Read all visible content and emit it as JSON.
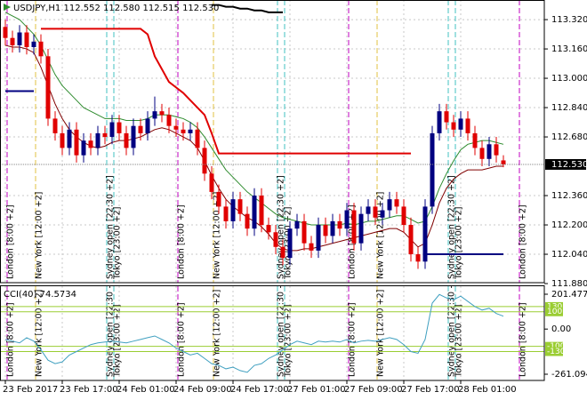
{
  "chart_data": {
    "type": "candlestick",
    "title": "USDJPY,H1  112.552 112.580 112.515 112.530",
    "categories": [
      "23 Feb 2017",
      null,
      null,
      null,
      null,
      null,
      null,
      null,
      "23 Feb 17:00",
      null,
      null,
      null,
      null,
      null,
      null,
      null,
      "24 Feb 01:00",
      null,
      null,
      null,
      null,
      null,
      null,
      null,
      "24 Feb 09:00",
      null,
      null,
      null,
      null,
      null,
      null,
      null,
      "24 Feb 17:00",
      null,
      null,
      null,
      null,
      null,
      null,
      null,
      "27 Feb 01:00",
      null,
      null,
      null,
      null,
      null,
      null,
      null,
      "27 Feb 09:00",
      null,
      null,
      null,
      null,
      null,
      null,
      null,
      "27 Feb 17:00",
      null,
      null,
      null,
      null,
      null,
      null,
      null,
      "28 Feb 01:00",
      null,
      null,
      null,
      null,
      null,
      null
    ],
    "open": [
      113.28,
      113.22,
      113.18,
      113.25,
      113.17,
      113.2,
      113.12,
      112.78,
      112.7,
      112.62,
      112.72,
      112.58,
      112.66,
      112.62,
      112.7,
      112.68,
      112.76,
      112.7,
      112.62,
      112.74,
      112.7,
      112.78,
      112.82,
      112.8,
      112.74,
      112.72,
      112.7,
      112.72,
      112.62,
      112.48,
      112.38,
      112.3,
      112.22,
      112.34,
      112.26,
      112.18,
      112.36,
      112.2,
      112.16,
      112.08,
      112.02,
      112.18,
      112.22,
      112.1,
      112.06,
      112.2,
      112.14,
      112.22,
      112.18,
      112.28,
      112.1,
      112.26,
      112.3,
      112.24,
      112.28,
      112.34,
      112.3,
      112.2,
      112.04,
      112.0,
      112.3,
      112.7,
      112.82,
      112.76,
      112.72,
      112.78,
      112.7,
      112.62,
      112.56,
      112.64,
      112.552
    ],
    "high": [
      113.32,
      113.26,
      113.29,
      113.29,
      113.24,
      113.24,
      113.16,
      112.82,
      112.74,
      112.76,
      112.76,
      112.7,
      112.7,
      112.74,
      112.74,
      112.8,
      112.8,
      112.74,
      112.78,
      112.78,
      112.82,
      112.9,
      112.86,
      112.84,
      112.78,
      112.76,
      112.76,
      112.76,
      112.66,
      112.52,
      112.42,
      112.34,
      112.38,
      112.38,
      112.3,
      112.4,
      112.4,
      112.24,
      112.2,
      112.12,
      112.22,
      112.26,
      112.26,
      112.14,
      112.24,
      112.24,
      112.26,
      112.26,
      112.32,
      112.32,
      112.3,
      112.34,
      112.34,
      112.32,
      112.38,
      112.38,
      112.34,
      112.24,
      112.08,
      112.34,
      112.74,
      112.86,
      112.86,
      112.8,
      112.82,
      112.82,
      112.74,
      112.66,
      112.68,
      112.68,
      112.58
    ],
    "low": [
      113.18,
      113.14,
      113.14,
      113.13,
      113.13,
      113.08,
      112.74,
      112.66,
      112.58,
      112.58,
      112.54,
      112.54,
      112.58,
      112.58,
      112.64,
      112.64,
      112.66,
      112.58,
      112.58,
      112.66,
      112.66,
      112.74,
      112.76,
      112.7,
      112.68,
      112.66,
      112.66,
      112.58,
      112.44,
      112.34,
      112.26,
      112.18,
      112.18,
      112.22,
      112.14,
      112.14,
      112.16,
      112.12,
      112.04,
      111.98,
      111.98,
      112.14,
      112.06,
      112.02,
      112.02,
      112.1,
      112.1,
      112.14,
      112.14,
      112.06,
      112.06,
      112.22,
      112.2,
      112.2,
      112.24,
      112.26,
      112.16,
      112.0,
      111.96,
      111.96,
      112.26,
      112.66,
      112.72,
      112.68,
      112.68,
      112.66,
      112.58,
      112.52,
      112.52,
      112.54,
      112.515
    ],
    "close": [
      113.22,
      113.18,
      113.25,
      113.17,
      113.2,
      113.12,
      112.78,
      112.7,
      112.62,
      112.72,
      112.58,
      112.66,
      112.62,
      112.7,
      112.68,
      112.76,
      112.7,
      112.62,
      112.74,
      112.7,
      112.78,
      112.82,
      112.8,
      112.74,
      112.72,
      112.7,
      112.72,
      112.62,
      112.48,
      112.38,
      112.3,
      112.22,
      112.34,
      112.26,
      112.18,
      112.36,
      112.2,
      112.16,
      112.08,
      112.02,
      112.18,
      112.22,
      112.1,
      112.06,
      112.2,
      112.14,
      112.22,
      112.18,
      112.28,
      112.1,
      112.26,
      112.3,
      112.24,
      112.28,
      112.34,
      112.3,
      112.2,
      112.04,
      112.0,
      112.3,
      112.7,
      112.82,
      112.76,
      112.72,
      112.78,
      112.7,
      112.62,
      112.56,
      112.64,
      112.58,
      112.53
    ],
    "up_color": "#000080",
    "down_color": "#e00000",
    "series": [
      {
        "color": "#2e8b2e",
        "values": [
          113.36,
          113.34,
          113.32,
          113.28,
          113.24,
          113.18,
          113.1,
          113.02,
          112.96,
          112.92,
          112.88,
          112.84,
          112.82,
          112.8,
          112.78,
          112.78,
          112.78,
          112.77,
          112.77,
          112.77,
          112.78,
          112.8,
          112.8,
          112.8,
          112.79,
          112.78,
          112.76,
          112.73,
          112.68,
          112.62,
          112.56,
          112.5,
          112.46,
          112.42,
          112.38,
          112.35,
          112.32,
          112.29,
          112.26,
          112.24,
          112.23,
          112.22,
          112.21,
          112.2,
          112.2,
          112.2,
          112.2,
          112.2,
          112.21,
          112.2,
          112.21,
          112.22,
          112.22,
          112.23,
          112.24,
          112.25,
          112.25,
          112.23,
          112.21,
          112.22,
          112.3,
          112.4,
          112.48,
          112.55,
          112.61,
          112.64,
          112.65,
          112.66,
          112.66,
          112.65,
          112.64
        ]
      },
      {
        "color": "#800000",
        "values": [
          113.18,
          113.17,
          113.17,
          113.16,
          113.14,
          113.06,
          112.96,
          112.86,
          112.78,
          112.72,
          112.68,
          112.65,
          112.63,
          112.62,
          112.63,
          112.65,
          112.66,
          112.66,
          112.67,
          112.68,
          112.7,
          112.72,
          112.73,
          112.72,
          112.7,
          112.68,
          112.66,
          112.62,
          112.55,
          112.47,
          112.4,
          112.34,
          112.3,
          112.27,
          112.24,
          112.22,
          112.19,
          112.15,
          112.1,
          112.07,
          112.06,
          112.06,
          112.07,
          112.07,
          112.08,
          112.09,
          112.1,
          112.11,
          112.12,
          112.13,
          112.14,
          112.15,
          112.16,
          112.17,
          112.18,
          112.18,
          112.16,
          112.12,
          112.08,
          112.1,
          112.2,
          112.32,
          112.4,
          112.45,
          112.48,
          112.5,
          112.5,
          112.5,
          112.51,
          112.52,
          112.52
        ]
      },
      {
        "color": "#e00000",
        "width": 2,
        "values": [
          null,
          null,
          null,
          null,
          null,
          113.27,
          113.27,
          113.27,
          113.27,
          113.27,
          113.27,
          113.27,
          113.27,
          113.27,
          113.27,
          113.27,
          113.27,
          113.27,
          113.27,
          113.27,
          113.24,
          113.12,
          113.05,
          112.98,
          112.95,
          112.92,
          112.88,
          112.84,
          112.8,
          112.7,
          112.59,
          112.59,
          112.59,
          112.59,
          112.59,
          112.59,
          112.59,
          112.59,
          112.59,
          112.59,
          112.59,
          112.59,
          112.59,
          112.59,
          112.59,
          112.59,
          112.59,
          112.59,
          112.59,
          112.59,
          112.59,
          112.59,
          112.59,
          112.59,
          112.59,
          112.59,
          112.59,
          112.59,
          null,
          null,
          null,
          null,
          null,
          null,
          null,
          null,
          null,
          null,
          null,
          null,
          null
        ]
      },
      {
        "color": "#000080",
        "width": 2,
        "values": [
          112.93,
          112.93,
          112.93,
          112.93,
          112.93,
          null,
          null,
          null,
          null,
          null,
          null,
          null,
          null,
          null,
          null,
          null,
          null,
          null,
          null,
          null,
          null,
          null,
          null,
          null,
          null,
          null,
          null,
          null,
          null,
          null,
          null,
          null,
          null,
          null,
          null,
          null,
          null,
          null,
          null,
          null,
          null,
          null,
          null,
          null,
          null,
          null,
          null,
          null,
          null,
          null,
          null,
          null,
          null,
          null,
          null,
          null,
          null,
          null,
          null,
          112.04,
          112.04,
          112.04,
          112.04,
          112.04,
          112.04,
          112.04,
          112.04,
          112.04,
          112.04,
          112.04,
          112.04
        ]
      },
      {
        "color": "#000000",
        "width": 2,
        "values": [
          null,
          null,
          null,
          null,
          null,
          null,
          null,
          null,
          null,
          null,
          null,
          null,
          null,
          null,
          null,
          null,
          null,
          null,
          null,
          null,
          null,
          null,
          null,
          null,
          null,
          null,
          null,
          null,
          null,
          113.4,
          113.4,
          113.39,
          113.39,
          113.38,
          113.38,
          113.37,
          113.37,
          113.36,
          113.36,
          113.36,
          null,
          null,
          null,
          null,
          null,
          null,
          null,
          null,
          null,
          null,
          null,
          null,
          null,
          null,
          null,
          null,
          null,
          null,
          null,
          null,
          null,
          null,
          null,
          null,
          null,
          null,
          null,
          null,
          null,
          null,
          null
        ]
      }
    ],
    "ylim": [
      111.885,
      113.427
    ],
    "yticks": [
      {
        "value": 113.32,
        "label": "113.320"
      },
      {
        "value": 113.16,
        "label": "113.160"
      },
      {
        "value": 113.0,
        "label": "113.000"
      },
      {
        "value": 112.84,
        "label": "112.840"
      },
      {
        "value": 112.68,
        "label": "112.680"
      },
      {
        "value": 112.36,
        "label": "112.360"
      },
      {
        "value": 112.2,
        "label": "112.200"
      },
      {
        "value": 112.04,
        "label": "112.040"
      },
      {
        "value": 111.88,
        "label": "111.880"
      }
    ],
    "last_price": {
      "value": 112.53,
      "label": "112.530"
    },
    "grid": true,
    "sessions": [
      {
        "label": "London [8:00 +2]",
        "at": 0,
        "color": "#c000c0"
      },
      {
        "label": "New York [12:00 +2]",
        "at": 4,
        "color": "#e0c040"
      },
      {
        "label": "Sydney open [22:30 +2]",
        "at": 14,
        "color": "#40c0c0"
      },
      {
        "label": "Tokyo [23:00 +2]",
        "at": 15,
        "color": "#40c0c0"
      },
      {
        "label": "London [8:00 +2]",
        "at": 24,
        "color": "#c000c0"
      },
      {
        "label": "New York [12:00 +2]",
        "at": 29,
        "color": "#e0c040"
      },
      {
        "label": "Sydney open [22:30 +2]",
        "at": 38,
        "color": "#40c0c0"
      },
      {
        "label": "Tokyo [23:00 +2]",
        "at": 39,
        "color": "#40c0c0"
      },
      {
        "label": "London [8:00 +2]",
        "at": 48,
        "color": "#c000c0"
      },
      {
        "label": "New York [12:00 +2]",
        "at": 52,
        "color": "#e0c040"
      },
      {
        "label": "Sydney open [22:30 +2]",
        "at": 62,
        "color": "#40c0c0"
      },
      {
        "label": "Tokyo [23:00 +2]",
        "at": 63,
        "color": "#40c0c0"
      },
      {
        "label": "London [8:00 +2]",
        "at": 72,
        "color": "#c000c0"
      }
    ],
    "indicator": {
      "title": "CCI(40) 74.5734",
      "color": "#40a0c0",
      "values": [
        -60,
        -70,
        -80,
        -50,
        -70,
        -120,
        -180,
        -200,
        -190,
        -150,
        -130,
        -110,
        -90,
        -80,
        -75,
        -70,
        -75,
        -80,
        -70,
        -60,
        -50,
        -40,
        -60,
        -80,
        -110,
        -130,
        -150,
        -140,
        -170,
        -200,
        -210,
        -230,
        -220,
        -240,
        -250,
        -210,
        -200,
        -170,
        -150,
        -120,
        -90,
        -70,
        -80,
        -90,
        -70,
        -75,
        -70,
        -75,
        -60,
        -80,
        -70,
        -65,
        -70,
        -60,
        -50,
        -60,
        -90,
        -130,
        -140,
        -60,
        150,
        200,
        180,
        170,
        190,
        160,
        130,
        110,
        120,
        90,
        74.5734
      ],
      "ylim": [
        -297.1,
        247.7
      ],
      "yticks": [
        201.4774,
        {
          "value": 0,
          "label": "0.00"
        },
        -261.0946
      ],
      "levels": [
        130,
        100,
        -100,
        -130
      ],
      "level_color": "#9acd32"
    }
  }
}
